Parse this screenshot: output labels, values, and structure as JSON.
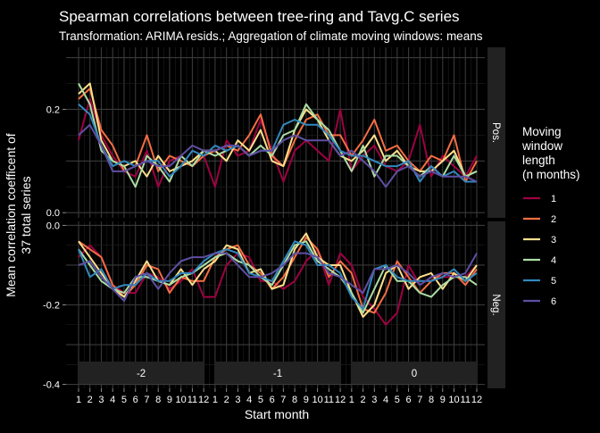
{
  "chart_data": {
    "type": "line",
    "title": "Spearman correlations between tree-ring and Tavg.C series",
    "subtitle": "Transformation: ARIMA resids.; Aggregation of climate moving windows: means",
    "xlabel": "Start month",
    "ylabel_line1": "Mean correlation coefficent of",
    "ylabel_line2": "37 total series",
    "x_tick_labels": [
      "1",
      "2",
      "3",
      "4",
      "5",
      "6",
      "7",
      "8",
      "9",
      "10",
      "11",
      "12",
      "1",
      "2",
      "3",
      "4",
      "5",
      "6",
      "7",
      "8",
      "9",
      "10",
      "11",
      "12",
      "1",
      "2",
      "3",
      "4",
      "5",
      "6",
      "7",
      "8",
      "9",
      "10",
      "11",
      "12"
    ],
    "year_strips": [
      "-2",
      "-1",
      "0"
    ],
    "panel_strips": [
      "Pos.",
      "Neg."
    ],
    "pos_ylim": [
      -0.01,
      0.32
    ],
    "neg_ylim": [
      -0.41,
      0.01
    ],
    "pos_yticks": [
      {
        "v": 0.2,
        "label": "0.2"
      },
      {
        "v": 0.0,
        "label": "0.0"
      }
    ],
    "neg_yticks": [
      {
        "v": 0.0,
        "label": "0.0"
      },
      {
        "v": -0.2,
        "label": "-0.2"
      },
      {
        "v": -0.4,
        "label": "-0.4"
      }
    ],
    "legend_title": [
      "Moving",
      "window",
      "length",
      "(n months)"
    ],
    "legend_labels": [
      "1",
      "2",
      "3",
      "4",
      "5",
      "6"
    ],
    "grid": true,
    "legend_position": "right",
    "series": [
      {
        "name": "1",
        "color": "#9e0142",
        "pos": [
          0.14,
          0.22,
          0.15,
          0.11,
          0.08,
          0.07,
          0.12,
          0.05,
          0.1,
          0.11,
          0.09,
          0.11,
          0.05,
          0.14,
          0.11,
          0.12,
          0.18,
          0.12,
          0.06,
          0.12,
          0.14,
          0.12,
          0.1,
          0.2,
          0.08,
          0.11,
          0.13,
          0.09,
          0.08,
          0.1,
          0.17,
          0.07,
          0.11,
          0.09,
          0.07,
          0.11
        ],
        "neg": [
          -0.08,
          -0.05,
          -0.08,
          -0.15,
          -0.17,
          -0.17,
          -0.12,
          -0.13,
          -0.16,
          -0.14,
          -0.11,
          -0.18,
          -0.18,
          -0.1,
          -0.07,
          -0.08,
          -0.14,
          -0.14,
          -0.16,
          -0.14,
          -0.09,
          -0.06,
          -0.15,
          -0.07,
          -0.1,
          -0.18,
          -0.21,
          -0.25,
          -0.22,
          -0.1,
          -0.15,
          -0.13,
          -0.13,
          -0.13,
          -0.13,
          -0.1
        ]
      },
      {
        "name": "2",
        "color": "#f46d43",
        "pos": [
          0.22,
          0.24,
          0.16,
          0.13,
          0.08,
          0.09,
          0.15,
          0.08,
          0.11,
          0.1,
          0.09,
          0.11,
          0.12,
          0.13,
          0.12,
          0.15,
          0.19,
          0.11,
          0.09,
          0.14,
          0.18,
          0.19,
          0.15,
          0.15,
          0.11,
          0.14,
          0.18,
          0.12,
          0.13,
          0.1,
          0.08,
          0.11,
          0.1,
          0.15,
          0.06,
          0.1
        ],
        "neg": [
          -0.04,
          -0.06,
          -0.08,
          -0.15,
          -0.18,
          -0.15,
          -0.1,
          -0.11,
          -0.17,
          -0.13,
          -0.14,
          -0.14,
          -0.08,
          -0.06,
          -0.05,
          -0.1,
          -0.12,
          -0.16,
          -0.13,
          -0.08,
          -0.03,
          -0.06,
          -0.13,
          -0.09,
          -0.12,
          -0.21,
          -0.22,
          -0.17,
          -0.09,
          -0.13,
          -0.17,
          -0.14,
          -0.12,
          -0.12,
          -0.15,
          -0.11
        ]
      },
      {
        "name": "3",
        "color": "#fee08b",
        "pos": [
          0.23,
          0.25,
          0.14,
          0.1,
          0.09,
          0.1,
          0.07,
          0.11,
          0.08,
          0.09,
          0.1,
          0.12,
          0.12,
          0.1,
          0.14,
          0.12,
          0.16,
          0.1,
          0.09,
          0.16,
          0.2,
          0.18,
          0.14,
          0.11,
          0.1,
          0.12,
          0.15,
          0.1,
          0.12,
          0.09,
          0.08,
          0.08,
          0.1,
          0.12,
          0.07,
          0.08
        ],
        "neg": [
          -0.04,
          -0.08,
          -0.12,
          -0.16,
          -0.18,
          -0.14,
          -0.09,
          -0.14,
          -0.15,
          -0.11,
          -0.15,
          -0.11,
          -0.09,
          -0.05,
          -0.06,
          -0.12,
          -0.11,
          -0.16,
          -0.15,
          -0.06,
          -0.02,
          -0.08,
          -0.1,
          -0.1,
          -0.17,
          -0.23,
          -0.2,
          -0.12,
          -0.1,
          -0.16,
          -0.13,
          -0.12,
          -0.16,
          -0.12,
          -0.14,
          -0.1
        ]
      },
      {
        "name": "4",
        "color": "#abdda4",
        "pos": [
          0.25,
          0.21,
          0.12,
          0.1,
          0.09,
          0.05,
          0.11,
          0.09,
          0.06,
          0.11,
          0.09,
          0.12,
          0.11,
          0.12,
          0.13,
          0.11,
          0.13,
          0.11,
          0.15,
          0.16,
          0.21,
          0.18,
          0.16,
          0.12,
          0.08,
          0.13,
          0.07,
          0.11,
          0.11,
          0.09,
          0.07,
          0.09,
          0.07,
          0.11,
          0.07,
          0.08
        ],
        "neg": [
          -0.06,
          -0.1,
          -0.14,
          -0.16,
          -0.17,
          -0.13,
          -0.13,
          -0.14,
          -0.15,
          -0.13,
          -0.12,
          -0.1,
          -0.08,
          -0.07,
          -0.09,
          -0.1,
          -0.13,
          -0.15,
          -0.1,
          -0.05,
          -0.04,
          -0.09,
          -0.11,
          -0.13,
          -0.17,
          -0.22,
          -0.16,
          -0.1,
          -0.14,
          -0.14,
          -0.17,
          -0.18,
          -0.15,
          -0.13,
          -0.13,
          -0.15
        ]
      },
      {
        "name": "5",
        "color": "#3288bd",
        "pos": [
          0.21,
          0.19,
          0.13,
          0.09,
          0.1,
          0.09,
          0.1,
          0.1,
          0.07,
          0.09,
          0.12,
          0.11,
          0.13,
          0.12,
          0.13,
          0.11,
          0.12,
          0.12,
          0.17,
          0.18,
          0.17,
          0.17,
          0.15,
          0.12,
          0.11,
          0.11,
          0.1,
          0.09,
          0.09,
          0.1,
          0.06,
          0.09,
          0.07,
          0.08,
          0.06,
          0.06
        ],
        "neg": [
          -0.06,
          -0.13,
          -0.11,
          -0.16,
          -0.15,
          -0.15,
          -0.12,
          -0.14,
          -0.14,
          -0.12,
          -0.12,
          -0.09,
          -0.07,
          -0.06,
          -0.07,
          -0.12,
          -0.13,
          -0.14,
          -0.09,
          -0.04,
          -0.05,
          -0.1,
          -0.1,
          -0.12,
          -0.18,
          -0.21,
          -0.11,
          -0.1,
          -0.13,
          -0.14,
          -0.14,
          -0.14,
          -0.13,
          -0.11,
          -0.14,
          -0.12
        ]
      },
      {
        "name": "6",
        "color": "#5e4fa2",
        "pos": [
          0.15,
          0.17,
          0.13,
          0.08,
          0.08,
          0.09,
          0.1,
          0.09,
          0.09,
          0.11,
          0.13,
          0.12,
          0.12,
          0.13,
          0.13,
          0.11,
          0.12,
          0.12,
          0.14,
          0.15,
          0.14,
          0.14,
          0.14,
          0.11,
          0.12,
          0.1,
          0.08,
          0.05,
          0.08,
          0.09,
          0.07,
          0.08,
          0.07,
          0.07,
          0.07,
          0.06
        ],
        "neg": [
          -0.1,
          -0.09,
          -0.13,
          -0.16,
          -0.19,
          -0.13,
          -0.12,
          -0.16,
          -0.12,
          -0.09,
          -0.08,
          -0.08,
          -0.07,
          -0.07,
          -0.1,
          -0.13,
          -0.13,
          -0.12,
          -0.1,
          -0.07,
          -0.07,
          -0.08,
          -0.12,
          -0.13,
          -0.15,
          -0.17,
          -0.11,
          -0.11,
          -0.1,
          -0.12,
          -0.15,
          -0.13,
          -0.12,
          -0.13,
          -0.12,
          -0.07
        ]
      }
    ]
  }
}
